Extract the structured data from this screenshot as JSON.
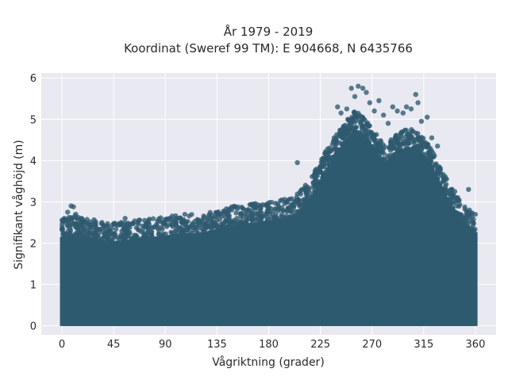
{
  "chart_data": {
    "type": "scatter",
    "title_line1": "År 1979 - 2019",
    "title_line2": "Koordinat (Sweref 99 TM): E 904668, N 6435766",
    "xlabel": "Vågriktning (grader)",
    "ylabel": "Signifikant våghöjd (m)",
    "xlim": [
      -18,
      378
    ],
    "ylim": [
      -0.22,
      6.12
    ],
    "xticks": [
      0,
      45,
      90,
      135,
      180,
      225,
      270,
      315,
      360
    ],
    "yticks": [
      0,
      1,
      2,
      3,
      4,
      5,
      6
    ],
    "grid": true,
    "marker_color": "#2e5a70",
    "background_color": "#e9e9f1",
    "envelope_upper": [
      [
        0,
        2.1
      ],
      [
        10,
        2.2
      ],
      [
        20,
        2.15
      ],
      [
        30,
        2.05
      ],
      [
        45,
        2.0
      ],
      [
        60,
        2.05
      ],
      [
        75,
        2.1
      ],
      [
        90,
        2.15
      ],
      [
        105,
        2.2
      ],
      [
        120,
        2.2
      ],
      [
        135,
        2.3
      ],
      [
        150,
        2.4
      ],
      [
        165,
        2.45
      ],
      [
        180,
        2.5
      ],
      [
        195,
        2.6
      ],
      [
        205,
        2.7
      ],
      [
        215,
        3.0
      ],
      [
        225,
        3.5
      ],
      [
        235,
        4.0
      ],
      [
        245,
        4.4
      ],
      [
        255,
        4.7
      ],
      [
        262,
        4.6
      ],
      [
        270,
        4.3
      ],
      [
        280,
        3.9
      ],
      [
        290,
        4.1
      ],
      [
        300,
        4.3
      ],
      [
        310,
        4.2
      ],
      [
        320,
        3.9
      ],
      [
        330,
        3.3
      ],
      [
        340,
        2.8
      ],
      [
        350,
        2.4
      ],
      [
        360,
        2.2
      ]
    ],
    "outlier_points": [
      [
        2,
        2.55
      ],
      [
        5,
        2.75
      ],
      [
        8,
        2.9
      ],
      [
        10,
        2.88
      ],
      [
        12,
        2.7
      ],
      [
        17,
        2.6
      ],
      [
        28,
        2.5
      ],
      [
        37,
        2.4
      ],
      [
        55,
        2.6
      ],
      [
        72,
        2.55
      ],
      [
        103,
        2.6
      ],
      [
        122,
        2.45
      ],
      [
        137,
        2.7
      ],
      [
        150,
        2.55
      ],
      [
        165,
        2.65
      ],
      [
        172,
        2.7
      ],
      [
        188,
        2.95
      ],
      [
        197,
        2.85
      ],
      [
        205,
        3.95
      ],
      [
        212,
        3.4
      ],
      [
        220,
        3.3
      ],
      [
        228,
        3.85
      ],
      [
        233,
        4.3
      ],
      [
        237,
        4.55
      ],
      [
        240,
        5.3
      ],
      [
        243,
        5.15
      ],
      [
        248,
        5.25
      ],
      [
        252,
        5.75
      ],
      [
        255,
        5.55
      ],
      [
        258,
        5.8
      ],
      [
        262,
        5.75
      ],
      [
        265,
        5.65
      ],
      [
        268,
        5.4
      ],
      [
        272,
        5.2
      ],
      [
        276,
        5.45
      ],
      [
        280,
        5.1
      ],
      [
        284,
        4.9
      ],
      [
        288,
        5.3
      ],
      [
        292,
        5.2
      ],
      [
        297,
        5.15
      ],
      [
        300,
        5.3
      ],
      [
        304,
        5.25
      ],
      [
        308,
        5.6
      ],
      [
        310,
        5.4
      ],
      [
        313,
        4.95
      ],
      [
        318,
        5.05
      ],
      [
        322,
        4.55
      ],
      [
        327,
        4.35
      ],
      [
        334,
        3.55
      ],
      [
        342,
        3.25
      ],
      [
        354,
        3.3
      ],
      [
        358,
        2.5
      ]
    ]
  }
}
